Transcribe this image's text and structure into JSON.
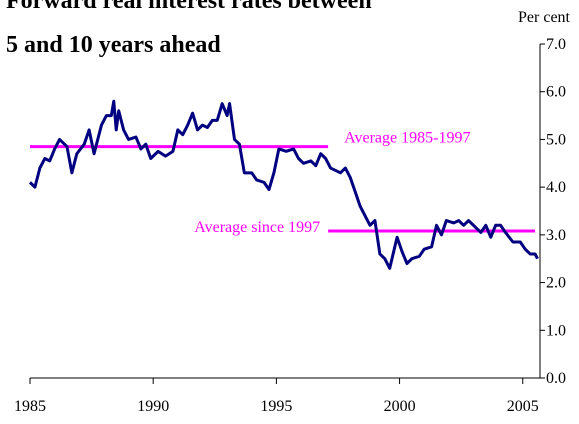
{
  "chart_data": {
    "type": "line",
    "title_lines": [
      "Forward real interest rates between",
      "5 and 10 years ahead"
    ],
    "y_unit_label": "Per cent",
    "x": [
      1985.0,
      1985.2,
      1985.4,
      1985.6,
      1985.8,
      1986.0,
      1986.2,
      1986.5,
      1986.7,
      1986.9,
      1987.2,
      1987.4,
      1987.6,
      1987.9,
      1988.1,
      1988.3,
      1988.4,
      1988.5,
      1988.6,
      1988.8,
      1989.0,
      1989.3,
      1989.5,
      1989.7,
      1989.9,
      1990.2,
      1990.5,
      1990.8,
      1991.0,
      1991.2,
      1991.4,
      1991.6,
      1991.8,
      1992.0,
      1992.2,
      1992.4,
      1992.6,
      1992.8,
      1993.0,
      1993.1,
      1993.3,
      1993.5,
      1993.7,
      1994.0,
      1994.2,
      1994.5,
      1994.7,
      1994.9,
      1995.1,
      1995.4,
      1995.7,
      1995.9,
      1996.1,
      1996.4,
      1996.6,
      1996.8,
      1997.0,
      1997.2,
      1997.4,
      1997.6,
      1997.8,
      1998.0,
      1998.2,
      1998.4,
      1998.6,
      1998.8,
      1999.0,
      1999.2,
      1999.4,
      1999.6,
      1999.9,
      2000.1,
      2000.3,
      2000.5,
      2000.8,
      2001.0,
      2001.3,
      2001.5,
      2001.7,
      2001.9,
      2002.2,
      2002.4,
      2002.6,
      2002.8,
      2003.0,
      2003.3,
      2003.5,
      2003.7,
      2003.9,
      2004.1,
      2004.3,
      2004.6,
      2004.9,
      2005.1,
      2005.3,
      2005.5,
      2005.6
    ],
    "series": [
      {
        "color": "#000080",
        "values": [
          4.1,
          4.0,
          4.4,
          4.6,
          4.55,
          4.8,
          5.0,
          4.85,
          4.3,
          4.7,
          4.9,
          5.2,
          4.7,
          5.3,
          5.5,
          5.5,
          5.8,
          5.2,
          5.6,
          5.2,
          5.0,
          5.05,
          4.8,
          4.9,
          4.6,
          4.75,
          4.65,
          4.75,
          5.2,
          5.1,
          5.3,
          5.55,
          5.2,
          5.3,
          5.25,
          5.4,
          5.4,
          5.75,
          5.5,
          5.75,
          5.0,
          4.9,
          4.3,
          4.3,
          4.15,
          4.1,
          3.95,
          4.3,
          4.8,
          4.75,
          4.8,
          4.6,
          4.5,
          4.55,
          4.45,
          4.7,
          4.6,
          4.4,
          4.35,
          4.3,
          4.4,
          4.2,
          3.9,
          3.6,
          3.4,
          3.2,
          3.3,
          2.6,
          2.5,
          2.3,
          2.95,
          2.65,
          2.4,
          2.5,
          2.55,
          2.7,
          2.75,
          3.2,
          3.0,
          3.3,
          3.25,
          3.3,
          3.2,
          3.3,
          3.2,
          3.05,
          3.2,
          2.95,
          3.2,
          3.2,
          3.05,
          2.85,
          2.85,
          2.7,
          2.6,
          2.6,
          2.5
        ]
      }
    ],
    "reference_lines": [
      {
        "label": "Average 1985-1997",
        "value": 4.85,
        "x": [
          1985,
          1997.1
        ],
        "color": "#ff00ff"
      },
      {
        "label": "Average since 1997",
        "value": 3.08,
        "x": [
          1997.1,
          2005.5
        ],
        "color": "#ff00ff"
      }
    ],
    "xlim": [
      1985,
      2005.7
    ],
    "xticks": [
      1985,
      1990,
      1995,
      2000,
      2005
    ],
    "ylim": [
      0,
      7
    ],
    "yticks": [
      {
        "value": 0,
        "label": "0.0"
      },
      {
        "value": 1,
        "label": "1.0"
      },
      {
        "value": 2,
        "label": "2.0"
      },
      {
        "value": 3,
        "label": "3.0"
      },
      {
        "value": 4,
        "label": "4.0"
      },
      {
        "value": 5,
        "label": "5.0"
      },
      {
        "value": 6,
        "label": "6.0"
      },
      {
        "value": 7,
        "label": "7.0"
      }
    ],
    "y_axis_side": "right"
  }
}
